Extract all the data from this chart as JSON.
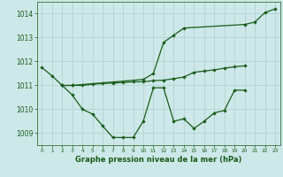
{
  "line_color": "#1a5c1a",
  "bg_color": "#cce8e8",
  "grid_color": "#b8d4d4",
  "xlabel": "Graphe pression niveau de la mer (hPa)",
  "ylim": [
    1008.5,
    1014.5
  ],
  "xlim": [
    -0.5,
    23.5
  ],
  "yticks": [
    1009,
    1010,
    1011,
    1012,
    1013,
    1014
  ],
  "xticks": [
    0,
    1,
    2,
    3,
    4,
    5,
    6,
    7,
    8,
    9,
    10,
    11,
    12,
    13,
    14,
    15,
    16,
    17,
    18,
    19,
    20,
    21,
    22,
    23
  ],
  "max_x": [
    0,
    1,
    2,
    3,
    10,
    11,
    12,
    13,
    14,
    20,
    21,
    22,
    23
  ],
  "max_y": [
    1011.75,
    1011.4,
    1011.0,
    1011.0,
    1011.25,
    1011.5,
    1012.8,
    1013.1,
    1013.4,
    1013.55,
    1013.65,
    1014.05,
    1014.2
  ],
  "min_x": [
    2,
    3,
    4,
    5,
    6,
    7,
    8,
    9,
    10,
    11,
    12,
    13,
    14,
    15,
    16,
    17,
    18,
    19,
    20
  ],
  "min_y": [
    1011.0,
    1010.6,
    1010.0,
    1009.8,
    1009.3,
    1008.82,
    1008.82,
    1008.82,
    1009.5,
    1010.9,
    1010.9,
    1009.5,
    1009.6,
    1009.2,
    1009.5,
    1009.85,
    1009.95,
    1010.8,
    1010.8
  ],
  "mean_x": [
    2,
    3,
    4,
    5,
    6,
    7,
    8,
    9,
    10,
    11,
    12,
    13,
    14,
    15,
    16,
    17,
    18,
    19,
    20
  ],
  "mean_y": [
    1011.0,
    1011.0,
    1011.0,
    1011.05,
    1011.08,
    1011.1,
    1011.12,
    1011.15,
    1011.15,
    1011.2,
    1011.22,
    1011.28,
    1011.35,
    1011.55,
    1011.6,
    1011.65,
    1011.72,
    1011.78,
    1011.82
  ]
}
